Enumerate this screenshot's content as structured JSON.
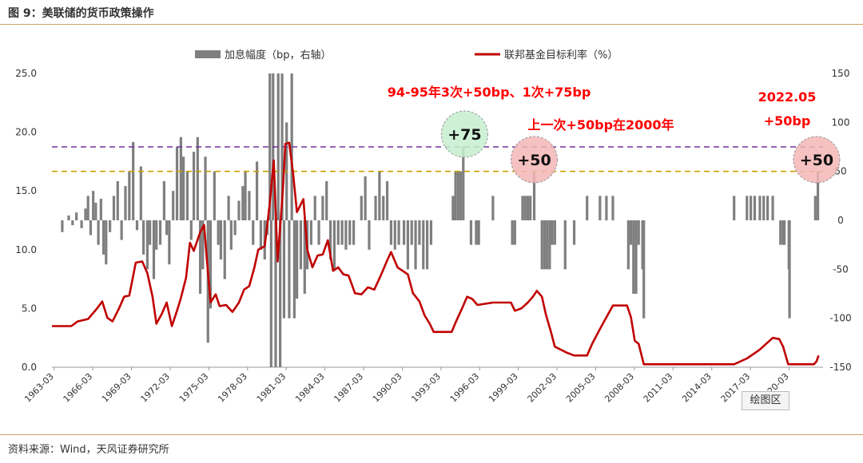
{
  "figure": {
    "title": "图 9：美联储的货币政策操作",
    "source": "资料来源：Wind，天风证券研究所",
    "button_label": "绘图区"
  },
  "chart_data": {
    "type": "line+bar",
    "legend": {
      "bar_label": "加息幅度（bp，右轴）",
      "line_label": "联邦基金目标利率（%）",
      "placement": "top-center"
    },
    "colors": {
      "line": "#c00000",
      "bar": "#7f7f7f",
      "purple_ref": "#7030a0",
      "gold_ref": "#c9a000",
      "annot": "#ff0000"
    },
    "left_axis": {
      "min": 0,
      "max": 25,
      "ticks": [
        "0.0",
        "5.0",
        "10.0",
        "15.0",
        "20.0",
        "25.0"
      ]
    },
    "right_axis": {
      "min": -150,
      "max": 150,
      "ticks": [
        "-150",
        "-100",
        "-50",
        "0",
        "50",
        "100",
        "150"
      ]
    },
    "x_ticks": [
      "1963-03",
      "1966-03",
      "1969-03",
      "1972-03",
      "1975-03",
      "1978-03",
      "1981-03",
      "1984-03",
      "1987-03",
      "1990-03",
      "1993-03",
      "1996-03",
      "1999-03",
      "2002-03",
      "2005-03",
      "2008-03",
      "2011-03",
      "2014-03",
      "2017-03",
      "2020-03"
    ],
    "x_range": [
      1963.0,
      2022.8
    ],
    "ref_lines_right_axis": [
      75,
      50
    ],
    "rate_series": [
      [
        1963.0,
        3.5
      ],
      [
        1963.5,
        3.5
      ],
      [
        1964.5,
        3.5
      ],
      [
        1965.0,
        3.9
      ],
      [
        1965.8,
        4.1
      ],
      [
        1966.5,
        5.0
      ],
      [
        1966.9,
        5.6
      ],
      [
        1967.3,
        4.2
      ],
      [
        1967.7,
        3.9
      ],
      [
        1968.2,
        5.0
      ],
      [
        1968.6,
        6.0
      ],
      [
        1969.0,
        6.1
      ],
      [
        1969.5,
        8.9
      ],
      [
        1970.0,
        9.0
      ],
      [
        1970.4,
        8.0
      ],
      [
        1970.8,
        6.0
      ],
      [
        1971.1,
        3.7
      ],
      [
        1971.5,
        4.5
      ],
      [
        1971.9,
        5.5
      ],
      [
        1972.3,
        3.5
      ],
      [
        1972.7,
        4.8
      ],
      [
        1973.0,
        5.9
      ],
      [
        1973.4,
        7.6
      ],
      [
        1973.7,
        10.6
      ],
      [
        1974.0,
        9.9
      ],
      [
        1974.5,
        11.5
      ],
      [
        1974.8,
        12.1
      ],
      [
        1975.0,
        9.4
      ],
      [
        1975.3,
        5.5
      ],
      [
        1975.7,
        6.2
      ],
      [
        1976.0,
        5.2
      ],
      [
        1976.5,
        5.3
      ],
      [
        1977.0,
        4.7
      ],
      [
        1977.5,
        5.5
      ],
      [
        1977.9,
        6.6
      ],
      [
        1978.3,
        6.9
      ],
      [
        1978.7,
        8.5
      ],
      [
        1979.0,
        10.0
      ],
      [
        1979.5,
        10.3
      ],
      [
        1979.9,
        14.0
      ],
      [
        1980.2,
        17.6
      ],
      [
        1980.5,
        9.0
      ],
      [
        1980.9,
        15.0
      ],
      [
        1981.1,
        19.0
      ],
      [
        1981.4,
        19.1
      ],
      [
        1981.7,
        16.5
      ],
      [
        1982.0,
        13.2
      ],
      [
        1982.5,
        14.3
      ],
      [
        1982.8,
        10.0
      ],
      [
        1983.2,
        8.5
      ],
      [
        1983.6,
        9.5
      ],
      [
        1984.0,
        9.6
      ],
      [
        1984.4,
        10.8
      ],
      [
        1984.8,
        8.2
      ],
      [
        1985.2,
        8.5
      ],
      [
        1985.6,
        7.9
      ],
      [
        1986.0,
        7.8
      ],
      [
        1986.5,
        6.3
      ],
      [
        1987.0,
        6.2
      ],
      [
        1987.5,
        6.8
      ],
      [
        1988.0,
        6.6
      ],
      [
        1988.5,
        7.8
      ],
      [
        1989.0,
        9.1
      ],
      [
        1989.3,
        9.8
      ],
      [
        1989.8,
        8.5
      ],
      [
        1990.2,
        8.2
      ],
      [
        1990.6,
        7.9
      ],
      [
        1991.0,
        6.3
      ],
      [
        1991.5,
        5.6
      ],
      [
        1991.9,
        4.4
      ],
      [
        1992.3,
        3.7
      ],
      [
        1992.6,
        3.0
      ],
      [
        1993.0,
        3.0
      ],
      [
        1994.0,
        3.0
      ],
      [
        1994.3,
        3.8
      ],
      [
        1994.8,
        5.0
      ],
      [
        1995.2,
        6.0
      ],
      [
        1995.6,
        5.8
      ],
      [
        1996.0,
        5.3
      ],
      [
        1997.2,
        5.5
      ],
      [
        1998.6,
        5.5
      ],
      [
        1998.9,
        4.8
      ],
      [
        1999.4,
        5.0
      ],
      [
        1999.9,
        5.5
      ],
      [
        2000.3,
        6.0
      ],
      [
        2000.6,
        6.5
      ],
      [
        2001.0,
        6.0
      ],
      [
        2001.3,
        4.5
      ],
      [
        2001.7,
        3.0
      ],
      [
        2002.0,
        1.75
      ],
      [
        2002.9,
        1.25
      ],
      [
        2003.5,
        1.0
      ],
      [
        2004.5,
        1.0
      ],
      [
        2004.9,
        2.0
      ],
      [
        2005.5,
        3.25
      ],
      [
        2006.0,
        4.25
      ],
      [
        2006.5,
        5.25
      ],
      [
        2007.6,
        5.25
      ],
      [
        2007.9,
        4.25
      ],
      [
        2008.2,
        2.25
      ],
      [
        2008.5,
        2.0
      ],
      [
        2008.9,
        0.25
      ],
      [
        2015.9,
        0.25
      ],
      [
        2016.9,
        0.75
      ],
      [
        2017.9,
        1.5
      ],
      [
        2018.9,
        2.5
      ],
      [
        2019.4,
        2.4
      ],
      [
        2019.7,
        1.75
      ],
      [
        2020.1,
        0.25
      ],
      [
        2022.1,
        0.25
      ],
      [
        2022.3,
        0.5
      ],
      [
        2022.45,
        1.0
      ]
    ],
    "bar_series": [
      [
        1963.5,
        0
      ],
      [
        1963.8,
        -12
      ],
      [
        1964.3,
        5
      ],
      [
        1964.6,
        -5
      ],
      [
        1964.9,
        8
      ],
      [
        1965.3,
        -8
      ],
      [
        1965.6,
        12
      ],
      [
        1965.8,
        25
      ],
      [
        1966.0,
        -15
      ],
      [
        1966.2,
        30
      ],
      [
        1966.4,
        18
      ],
      [
        1966.6,
        -25
      ],
      [
        1966.8,
        22
      ],
      [
        1967.0,
        -35
      ],
      [
        1967.2,
        -45
      ],
      [
        1967.5,
        -12
      ],
      [
        1967.8,
        25
      ],
      [
        1968.1,
        40
      ],
      [
        1968.4,
        -20
      ],
      [
        1968.7,
        35
      ],
      [
        1969.0,
        50
      ],
      [
        1969.3,
        80
      ],
      [
        1969.6,
        -10
      ],
      [
        1969.9,
        55
      ],
      [
        1970.1,
        -35
      ],
      [
        1970.4,
        -50
      ],
      [
        1970.6,
        -25
      ],
      [
        1970.9,
        -60
      ],
      [
        1971.1,
        -30
      ],
      [
        1971.4,
        -25
      ],
      [
        1971.7,
        40
      ],
      [
        1971.9,
        -15
      ],
      [
        1972.1,
        -45
      ],
      [
        1972.4,
        30
      ],
      [
        1972.7,
        75
      ],
      [
        1973.0,
        85
      ],
      [
        1973.2,
        65
      ],
      [
        1973.5,
        50
      ],
      [
        1973.8,
        -20
      ],
      [
        1974.0,
        70
      ],
      [
        1974.3,
        85
      ],
      [
        1974.5,
        -75
      ],
      [
        1974.7,
        -50
      ],
      [
        1974.9,
        65
      ],
      [
        1975.1,
        -125
      ],
      [
        1975.3,
        -90
      ],
      [
        1975.6,
        50
      ],
      [
        1975.9,
        -25
      ],
      [
        1976.1,
        -40
      ],
      [
        1976.4,
        -60
      ],
      [
        1976.7,
        25
      ],
      [
        1976.9,
        -30
      ],
      [
        1977.2,
        -15
      ],
      [
        1977.5,
        20
      ],
      [
        1977.8,
        35
      ],
      [
        1978.0,
        50
      ],
      [
        1978.3,
        30
      ],
      [
        1978.6,
        -25
      ],
      [
        1978.9,
        60
      ],
      [
        1979.2,
        -30
      ],
      [
        1979.5,
        -40
      ],
      [
        1979.7,
        -15
      ],
      [
        1979.9,
        150
      ],
      [
        1980.0,
        -150
      ],
      [
        1980.15,
        150
      ],
      [
        1980.35,
        -150
      ],
      [
        1980.55,
        150
      ],
      [
        1980.7,
        -150
      ],
      [
        1980.85,
        150
      ],
      [
        1981.0,
        -100
      ],
      [
        1981.2,
        100
      ],
      [
        1981.4,
        -100
      ],
      [
        1981.6,
        150
      ],
      [
        1981.8,
        -100
      ],
      [
        1982.0,
        -80
      ],
      [
        1982.3,
        -50
      ],
      [
        1982.6,
        -75
      ],
      [
        1982.8,
        -50
      ],
      [
        1983.1,
        -25
      ],
      [
        1983.4,
        25
      ],
      [
        1983.7,
        -25
      ],
      [
        1984.0,
        25
      ],
      [
        1984.3,
        40
      ],
      [
        1984.6,
        -40
      ],
      [
        1984.9,
        -50
      ],
      [
        1985.2,
        -25
      ],
      [
        1985.5,
        -25
      ],
      [
        1985.8,
        -30
      ],
      [
        1986.1,
        -25
      ],
      [
        1986.4,
        -25
      ],
      [
        1987.0,
        25
      ],
      [
        1987.3,
        45
      ],
      [
        1987.6,
        -30
      ],
      [
        1988.1,
        25
      ],
      [
        1988.4,
        50
      ],
      [
        1988.7,
        25
      ],
      [
        1989.0,
        40
      ],
      [
        1989.3,
        -25
      ],
      [
        1989.6,
        -30
      ],
      [
        1989.9,
        -25
      ],
      [
        1990.3,
        -25
      ],
      [
        1990.6,
        -50
      ],
      [
        1990.9,
        -25
      ],
      [
        1991.2,
        -50
      ],
      [
        1991.5,
        -25
      ],
      [
        1991.8,
        -50
      ],
      [
        1992.1,
        -50
      ],
      [
        1992.4,
        -25
      ],
      [
        1994.1,
        25
      ],
      [
        1994.3,
        50
      ],
      [
        1994.5,
        50
      ],
      [
        1994.7,
        50
      ],
      [
        1994.9,
        75
      ],
      [
        1995.5,
        -25
      ],
      [
        1995.9,
        -25
      ],
      [
        1996.1,
        -25
      ],
      [
        1997.2,
        25
      ],
      [
        1998.7,
        -25
      ],
      [
        1998.9,
        -25
      ],
      [
        1999.5,
        25
      ],
      [
        1999.7,
        25
      ],
      [
        1999.9,
        25
      ],
      [
        2000.1,
        25
      ],
      [
        2000.4,
        50
      ],
      [
        2001.0,
        -50
      ],
      [
        2001.2,
        -50
      ],
      [
        2001.4,
        -50
      ],
      [
        2001.6,
        -50
      ],
      [
        2001.8,
        -25
      ],
      [
        2002.0,
        -25
      ],
      [
        2002.8,
        -50
      ],
      [
        2003.5,
        -25
      ],
      [
        2004.5,
        25
      ],
      [
        2005.5,
        25
      ],
      [
        2006.0,
        25
      ],
      [
        2006.5,
        25
      ],
      [
        2007.7,
        -50
      ],
      [
        2007.9,
        -25
      ],
      [
        2008.1,
        -75
      ],
      [
        2008.3,
        -75
      ],
      [
        2008.5,
        -25
      ],
      [
        2008.8,
        -50
      ],
      [
        2008.9,
        -100
      ],
      [
        2015.9,
        25
      ],
      [
        2016.9,
        25
      ],
      [
        2017.2,
        25
      ],
      [
        2017.5,
        25
      ],
      [
        2017.9,
        25
      ],
      [
        2018.2,
        25
      ],
      [
        2018.5,
        25
      ],
      [
        2018.9,
        25
      ],
      [
        2019.5,
        -25
      ],
      [
        2019.7,
        -25
      ],
      [
        2019.8,
        -25
      ],
      [
        2020.15,
        -50
      ],
      [
        2020.2,
        -100
      ],
      [
        2022.2,
        25
      ],
      [
        2022.4,
        50
      ]
    ],
    "annotations": [
      {
        "text": "94-95年3次+50bp、1次+75bp",
        "color": "#ff0000"
      },
      {
        "text": "上一次+50bp在2000年",
        "color": "#ff0000"
      },
      {
        "text": "2022.05",
        "color": "#ff0000"
      },
      {
        "text": "+50bp",
        "color": "#ff0000"
      }
    ],
    "circles": [
      {
        "label": "+75",
        "x": 1995.0,
        "fill": "#c6efce"
      },
      {
        "label": "+50",
        "x": 2000.4,
        "fill": "#f4b6b6"
      },
      {
        "label": "+50",
        "x": 2022.3,
        "fill": "#f4b6b6"
      }
    ]
  }
}
